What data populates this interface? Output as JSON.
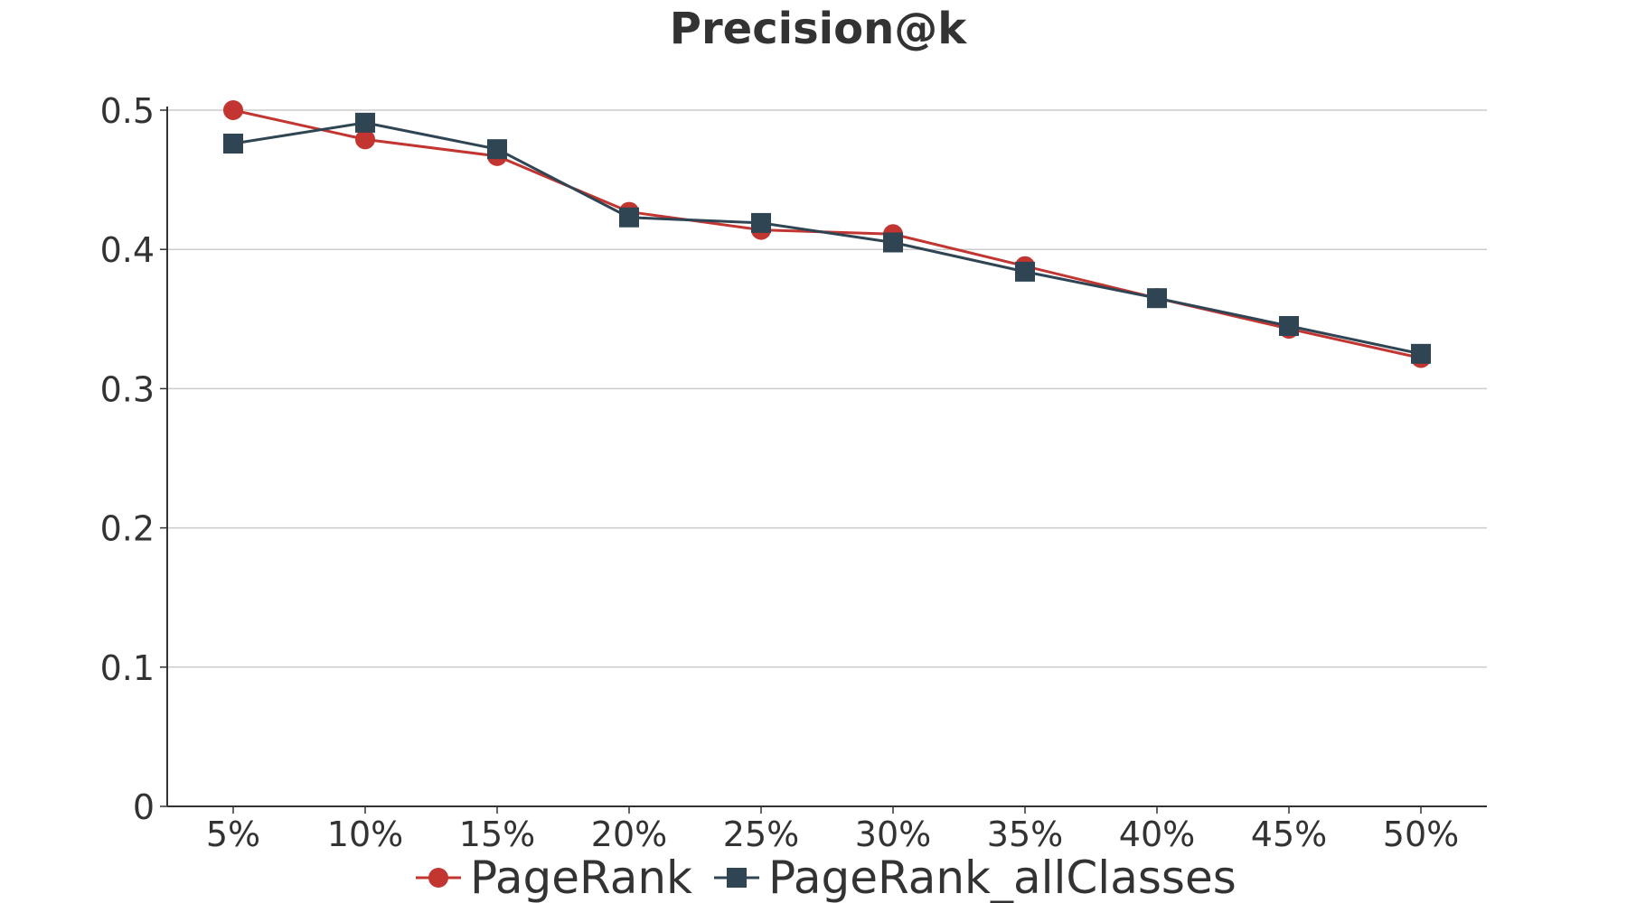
{
  "chart_data": {
    "type": "line",
    "title": "Precision@k",
    "xlabel": "",
    "ylabel": "",
    "categories": [
      "5%",
      "10%",
      "15%",
      "20%",
      "25%",
      "30%",
      "35%",
      "40%",
      "45%",
      "50%"
    ],
    "y_ticks": [
      "0",
      "0.1",
      "0.2",
      "0.3",
      "0.4",
      "0.5"
    ],
    "ylim": [
      0,
      0.5
    ],
    "grid": true,
    "legend_position": "bottom",
    "series": [
      {
        "name": "PageRank",
        "color": "#c23531",
        "marker": "circle",
        "values": [
          0.5,
          0.479,
          0.467,
          0.427,
          0.414,
          0.411,
          0.388,
          0.365,
          0.343,
          0.322
        ]
      },
      {
        "name": "PageRank_allClasses",
        "color": "#2f4554",
        "marker": "square",
        "values": [
          0.476,
          0.491,
          0.472,
          0.423,
          0.419,
          0.405,
          0.384,
          0.365,
          0.345,
          0.325
        ]
      }
    ]
  }
}
